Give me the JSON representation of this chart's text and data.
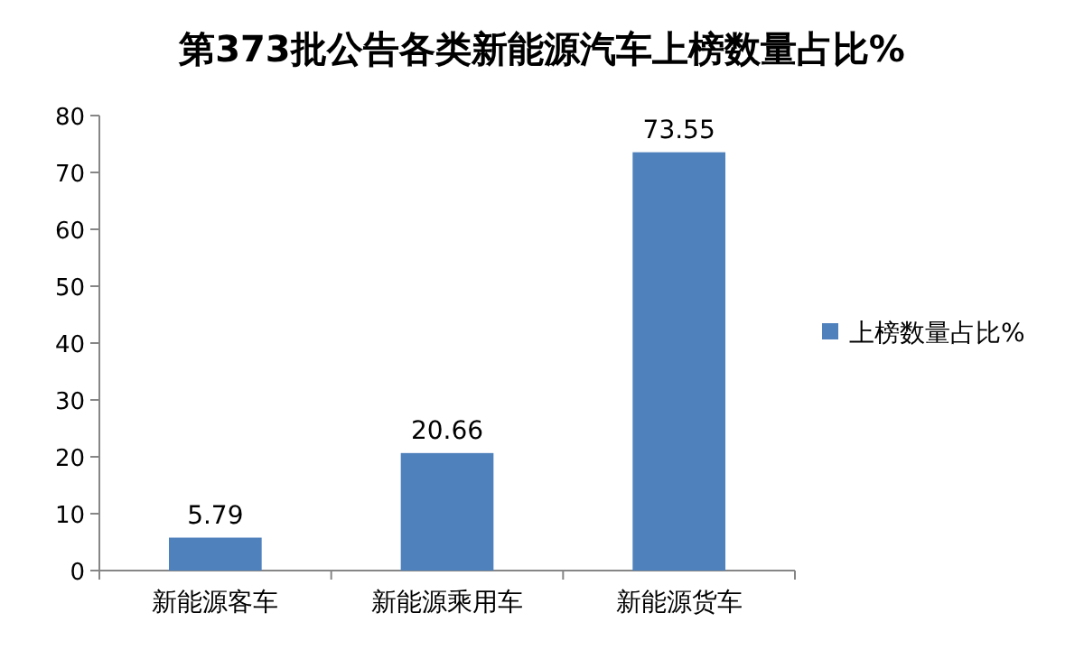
{
  "chart_data": {
    "type": "bar",
    "title": "第373批公告各类新能源汽车上榜数量占比%",
    "categories": [
      "新能源客车",
      "新能源乘用车",
      "新能源货车"
    ],
    "series": [
      {
        "name": "上榜数量占比%",
        "color": "#4f81bd",
        "values": [
          5.79,
          20.66,
          73.55
        ]
      }
    ],
    "ylim": [
      0,
      80
    ],
    "yticks": [
      0,
      10,
      20,
      30,
      40,
      50,
      60,
      70,
      80
    ],
    "data_labels": true,
    "legend": "right",
    "grid": false
  }
}
